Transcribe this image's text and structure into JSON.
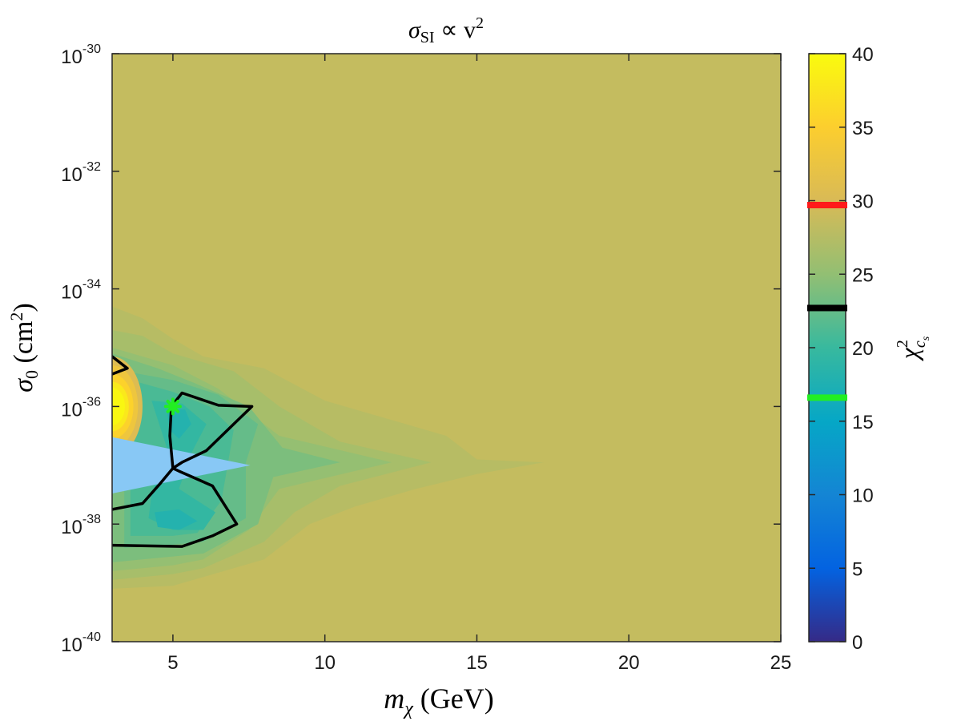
{
  "chart_data": {
    "type": "heatmap",
    "title": "σ_SI ∝ v²",
    "title_parts": {
      "sigma": "σ",
      "sub": "SI",
      "rest": " ∝ v",
      "sup": "2"
    },
    "xlabel": "m_χ (GeV)",
    "xlabel_parts": {
      "symbol": "m",
      "sub": "χ",
      "rest": " (GeV)"
    },
    "ylabel": "σ_0 (cm²)",
    "ylabel_parts": {
      "symbol": "σ",
      "sub": "0",
      "rest": " (cm",
      "sup": "2",
      "close": ")"
    },
    "colorbar_label": "χ²_{c_s}",
    "colorbar_label_parts": {
      "symbol": "χ",
      "sup": "2",
      "sub": "c",
      "subsub": "s"
    },
    "x_range": [
      3,
      25
    ],
    "y_log_range": [
      -40,
      -30
    ],
    "x_ticks": [
      {
        "value": 5,
        "label": "5"
      },
      {
        "value": 10,
        "label": "10"
      },
      {
        "value": 15,
        "label": "15"
      },
      {
        "value": 20,
        "label": "20"
      },
      {
        "value": 25,
        "label": "25"
      }
    ],
    "y_ticks": [
      {
        "exp": -30,
        "base": "10",
        "sup": "-30"
      },
      {
        "exp": -32,
        "base": "10",
        "sup": "-32"
      },
      {
        "exp": -34,
        "base": "10",
        "sup": "-34"
      },
      {
        "exp": -36,
        "base": "10",
        "sup": "-36"
      },
      {
        "exp": -38,
        "base": "10",
        "sup": "-38"
      },
      {
        "exp": -40,
        "base": "10",
        "sup": "-40"
      }
    ],
    "colorbar": {
      "range": [
        0,
        40
      ],
      "ticks": [
        {
          "value": 0,
          "label": "0"
        },
        {
          "value": 5,
          "label": "5"
        },
        {
          "value": 10,
          "label": "10"
        },
        {
          "value": 15,
          "label": "15"
        },
        {
          "value": 20,
          "label": "20"
        },
        {
          "value": 25,
          "label": "25"
        },
        {
          "value": 30,
          "label": "30"
        },
        {
          "value": 35,
          "label": "35"
        },
        {
          "value": 40,
          "label": "40"
        }
      ],
      "colors": [
        "#352a87",
        "#0363e1",
        "#1485d4",
        "#06a7c6",
        "#38b99e",
        "#92bf73",
        "#d9ba56",
        "#fcce2e",
        "#f9fb0e"
      ],
      "markers": [
        {
          "value": 29.7,
          "color": "#ff1a1a"
        },
        {
          "value": 22.7,
          "color": "#000000"
        },
        {
          "value": 16.6,
          "color": "#22ee22"
        }
      ]
    },
    "background_value": 28.5,
    "contour_levels": [
      {
        "value": 27.6,
        "points": [
          [
            3,
            -34.3
          ],
          [
            4,
            -34.5
          ],
          [
            5,
            -34.85
          ],
          [
            6,
            -35.15
          ],
          [
            8,
            -35.35
          ],
          [
            10,
            -35.9
          ],
          [
            12,
            -36.2
          ],
          [
            14,
            -36.5
          ],
          [
            15,
            -36.9
          ],
          [
            17.2,
            -36.95
          ],
          [
            15,
            -37.15
          ],
          [
            13,
            -37.4
          ],
          [
            11,
            -37.7
          ],
          [
            9.5,
            -38.0
          ],
          [
            8,
            -38.6
          ],
          [
            6,
            -38.9
          ],
          [
            5,
            -39.05
          ],
          [
            3,
            -39.1
          ]
        ]
      },
      {
        "value": 26.5,
        "points": [
          [
            3,
            -34.7
          ],
          [
            4,
            -34.8
          ],
          [
            5,
            -35.1
          ],
          [
            7,
            -35.4
          ],
          [
            8.5,
            -36.0
          ],
          [
            10.5,
            -36.6
          ],
          [
            13.5,
            -36.95
          ],
          [
            10.5,
            -37.35
          ],
          [
            9,
            -37.8
          ],
          [
            8,
            -38.3
          ],
          [
            6,
            -38.75
          ],
          [
            5,
            -38.85
          ],
          [
            3,
            -38.95
          ]
        ]
      },
      {
        "value": 25.2,
        "points": [
          [
            3,
            -35.0
          ],
          [
            5,
            -35.3
          ],
          [
            6.5,
            -35.7
          ],
          [
            8.5,
            -36.5
          ],
          [
            12.2,
            -36.95
          ],
          [
            8.5,
            -37.4
          ],
          [
            7.5,
            -38.1
          ],
          [
            6,
            -38.6
          ],
          [
            5,
            -38.7
          ],
          [
            3,
            -38.8
          ]
        ]
      },
      {
        "value": 23.8,
        "points": [
          [
            3,
            -35.1
          ],
          [
            4.5,
            -35.35
          ],
          [
            5.7,
            -35.6
          ],
          [
            7.5,
            -36.0
          ],
          [
            8.6,
            -36.7
          ],
          [
            10.5,
            -36.95
          ],
          [
            8.3,
            -37.2
          ],
          [
            7.8,
            -38.0
          ],
          [
            6,
            -38.5
          ],
          [
            5,
            -38.55
          ],
          [
            3,
            -38.65
          ]
        ]
      },
      {
        "value": 22.5,
        "points": [
          [
            3.4,
            -35.4
          ],
          [
            5,
            -35.55
          ],
          [
            6.5,
            -35.8
          ],
          [
            7.8,
            -36.3
          ],
          [
            7.4,
            -36.95
          ],
          [
            7.4,
            -37.9
          ],
          [
            6,
            -38.3
          ],
          [
            5,
            -38.35
          ],
          [
            3.4,
            -38.4
          ]
        ]
      },
      {
        "value": 21.0,
        "points": [
          [
            3.6,
            -35.55
          ],
          [
            5,
            -35.75
          ],
          [
            6.2,
            -36.0
          ],
          [
            7.0,
            -36.4
          ],
          [
            6.6,
            -37.6
          ],
          [
            5.8,
            -38.15
          ],
          [
            5,
            -38.2
          ],
          [
            3.6,
            -38.2
          ]
        ]
      },
      {
        "value": 19.5,
        "points": [
          [
            4.3,
            -35.9
          ],
          [
            5.3,
            -35.95
          ],
          [
            6.1,
            -36.3
          ],
          [
            5.6,
            -36.8
          ],
          [
            5.2,
            -37.4
          ],
          [
            6.4,
            -37.8
          ],
          [
            6.0,
            -38.1
          ],
          [
            5,
            -38.1
          ],
          [
            4.2,
            -37.9
          ],
          [
            4.3,
            -37.5
          ],
          [
            4.8,
            -36.7
          ]
        ]
      },
      {
        "value": 18.0,
        "points": [
          [
            4.8,
            -36.05
          ],
          [
            5.4,
            -36.05
          ],
          [
            5.6,
            -36.3
          ],
          [
            5.2,
            -36.55
          ],
          [
            4.9,
            -36.4
          ]
        ]
      },
      {
        "value": 18.0,
        "points": [
          [
            4.4,
            -37.8
          ],
          [
            5.2,
            -37.75
          ],
          [
            5.8,
            -37.95
          ],
          [
            5.2,
            -38.1
          ],
          [
            4.5,
            -38.05
          ]
        ]
      }
    ],
    "hot_spot": {
      "center": [
        3.0,
        -36.0
      ],
      "peak_value": 40,
      "levels": [
        {
          "value": 30.5,
          "rx": 1.0,
          "ry_log": 0.85
        },
        {
          "value": 33.0,
          "rx": 0.85,
          "ry_log": 0.7
        },
        {
          "value": 35.5,
          "rx": 0.7,
          "ry_log": 0.55
        },
        {
          "value": 38.0,
          "rx": 0.55,
          "ry_log": 0.42
        },
        {
          "value": 39.5,
          "rx": 0.42,
          "ry_log": 0.32
        }
      ]
    },
    "light_blue_region": {
      "color": "#88c8f5",
      "points": [
        [
          3,
          -36.52
        ],
        [
          7.55,
          -37.0
        ],
        [
          3,
          -37.48
        ]
      ]
    },
    "confidence_contours": [
      {
        "color": "#000000",
        "points": [
          [
            4.95,
            -36.0
          ],
          [
            5.3,
            -35.77
          ],
          [
            6.5,
            -35.98
          ],
          [
            7.6,
            -36.0
          ],
          [
            7.0,
            -36.3
          ],
          [
            6.1,
            -36.75
          ],
          [
            5.3,
            -36.95
          ],
          [
            5.0,
            -37.05
          ],
          [
            4.9,
            -36.5
          ],
          [
            4.95,
            -36.0
          ]
        ]
      },
      {
        "color": "#000000",
        "points": [
          [
            5.0,
            -37.05
          ],
          [
            5.2,
            -37.1
          ],
          [
            6.3,
            -37.35
          ],
          [
            7.1,
            -38.0
          ],
          [
            6.3,
            -38.2
          ],
          [
            5.3,
            -38.38
          ],
          [
            3,
            -38.36
          ]
        ]
      },
      {
        "color": "#000000",
        "points": [
          [
            5.0,
            -37.05
          ],
          [
            4.6,
            -37.3
          ],
          [
            4.0,
            -37.65
          ],
          [
            3,
            -37.75
          ]
        ]
      },
      {
        "color": "#000000",
        "points": [
          [
            3,
            -35.15
          ],
          [
            3.5,
            -35.35
          ],
          [
            3,
            -35.45
          ]
        ]
      }
    ],
    "best_fit": {
      "x": 5.0,
      "y_exp": -36.0,
      "color": "#22ee22"
    }
  }
}
